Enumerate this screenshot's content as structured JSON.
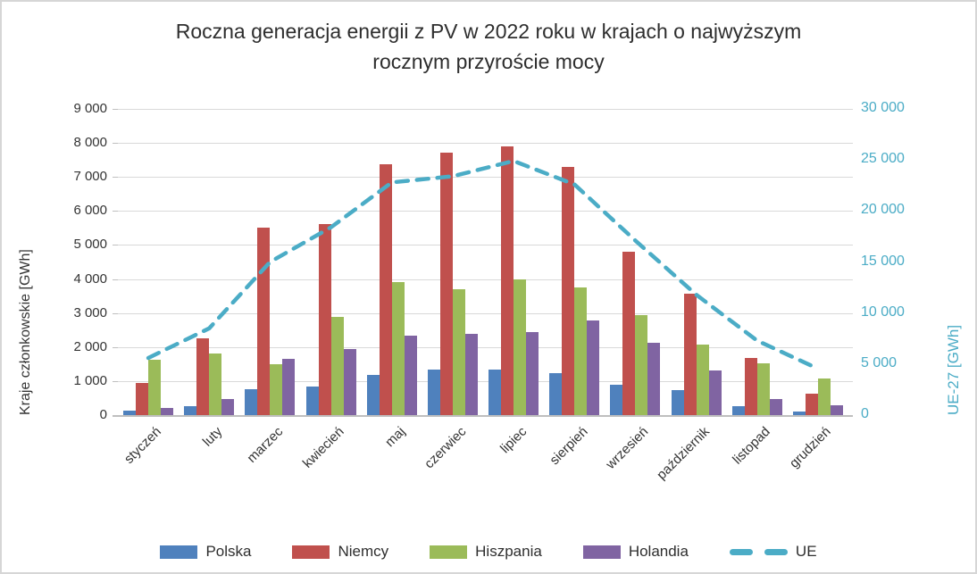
{
  "chart_data": {
    "type": "bar",
    "title": "Roczna generacja energii z PV w 2022 roku w krajach o najwyższym rocznym przyroście mocy",
    "title_lines": [
      "Roczna generacja energii z PV w 2022 roku w krajach o najwyższym",
      "rocznym przyroście mocy"
    ],
    "categories": [
      "styczeń",
      "luty",
      "marzec",
      "kwiecień",
      "maj",
      "czerwiec",
      "lipiec",
      "sierpień",
      "wrzesień",
      "październik",
      "listopad",
      "grudzień"
    ],
    "series": [
      {
        "name": "Polska",
        "color": "#4F81BD",
        "axis": "left",
        "values": [
          130,
          250,
          770,
          830,
          1180,
          1330,
          1330,
          1230,
          890,
          730,
          270,
          110
        ]
      },
      {
        "name": "Niemcy",
        "color": "#C0504D",
        "axis": "left",
        "values": [
          950,
          2250,
          5500,
          5620,
          7370,
          7720,
          7900,
          7290,
          4790,
          3560,
          1680,
          620
        ]
      },
      {
        "name": "Hiszpania",
        "color": "#9BBB59",
        "axis": "left",
        "values": [
          1630,
          1820,
          1500,
          2880,
          3900,
          3700,
          3990,
          3740,
          2930,
          2080,
          1530,
          1070
        ]
      },
      {
        "name": "Holandia",
        "color": "#8064A2",
        "axis": "left",
        "values": [
          220,
          460,
          1650,
          1930,
          2330,
          2380,
          2440,
          2790,
          2130,
          1300,
          470,
          300
        ]
      }
    ],
    "line_series": {
      "name": "UE",
      "color": "#4BACC6",
      "style": "dashed",
      "axis": "right",
      "values": [
        5600,
        8500,
        15000,
        18400,
        22800,
        23400,
        24900,
        22600,
        17100,
        11800,
        7300,
        4550
      ]
    },
    "left_axis": {
      "title": "Kraje członkowskie [GWh]",
      "min": 0,
      "max": 9000,
      "step": 1000
    },
    "right_axis": {
      "title": "UE-27 [GWh]",
      "min": 0,
      "max": 30000,
      "step": 5000
    },
    "grid": true,
    "legend_position": "bottom"
  }
}
